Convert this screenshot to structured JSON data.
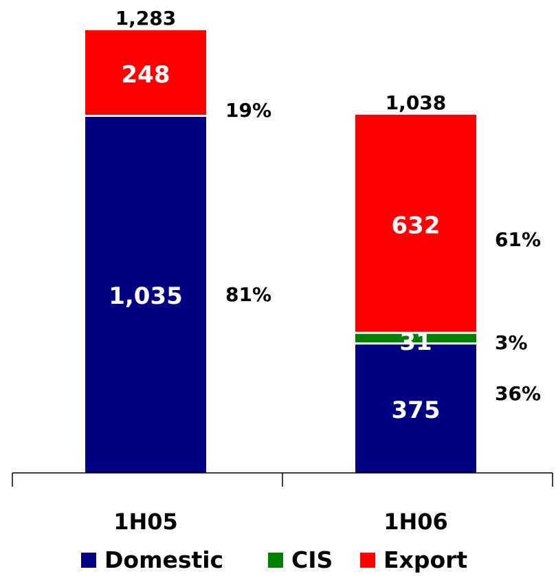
{
  "chart_data": {
    "type": "bar",
    "stacked": true,
    "categories": [
      "1H05",
      "1H06"
    ],
    "series": [
      {
        "name": "Domestic",
        "values": [
          1035,
          375
        ],
        "color": "#000080"
      },
      {
        "name": "CIS",
        "values": [
          0,
          31
        ],
        "color": "#008000"
      },
      {
        "name": "Export",
        "values": [
          248,
          632
        ],
        "color": "#ff0000"
      }
    ],
    "data_labels": [
      [
        "1,035",
        "375"
      ],
      [
        "",
        "31"
      ],
      [
        "248",
        "632"
      ]
    ],
    "totals": [
      "1,283",
      "1,038"
    ],
    "percent_labels": [
      [
        "81%",
        "36%"
      ],
      [
        "",
        "3%"
      ],
      [
        "19%",
        "61%"
      ]
    ],
    "ylim": [
      0,
      1283
    ],
    "grid": false,
    "legend_position": "bottom"
  }
}
